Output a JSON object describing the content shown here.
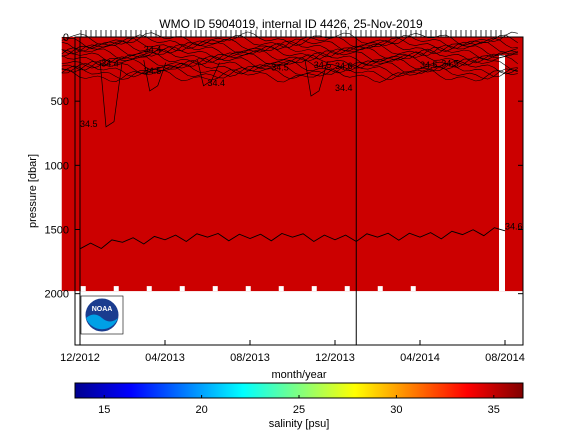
{
  "chart_data": [
    {
      "type": "heatmap",
      "title": "WMO ID 5904019, internal ID 4426, 25-Nov-2019",
      "xlabel": "month/year",
      "ylabel": "pressure [dbar]",
      "x_ticks": [
        "12/2012",
        "04/2013",
        "08/2013",
        "12/2013",
        "04/2014",
        "08/2014"
      ],
      "y_ticks": [
        "0",
        "500",
        "1000",
        "1500",
        "2000"
      ],
      "y_tick_values": [
        0,
        500,
        1000,
        1500,
        2000
      ],
      "ylim": [
        2400,
        0
      ],
      "x_range": [
        "2012-11",
        "2014-09"
      ],
      "fill_color": "#cc0000",
      "profile_bottom_dbar": 1980,
      "gap_columns_month": [
        "2014-08"
      ],
      "contour_labels": [
        {
          "text": "34.4",
          "x": "2013-01",
          "y": 230
        },
        {
          "text": "34.5",
          "x": "2013-03",
          "y": 290
        },
        {
          "text": "34.4",
          "x": "2013-03",
          "y": 120
        },
        {
          "text": "34.5",
          "x": "2012-12",
          "y": 700
        },
        {
          "text": "34.4",
          "x": "2013-06",
          "y": 380
        },
        {
          "text": "34.5",
          "x": "2013-09",
          "y": 260
        },
        {
          "text": "34.5",
          "x": "2013-11",
          "y": 240
        },
        {
          "text": "34.4",
          "x": "2013-12",
          "y": 420
        },
        {
          "text": "34.6",
          "x": "2013-12",
          "y": 250
        },
        {
          "text": "34.5",
          "x": "2014-04",
          "y": 240
        },
        {
          "text": "34.5",
          "x": "2014-05",
          "y": 230
        },
        {
          "text": "34.6",
          "x": "2014-08",
          "y": 1500
        }
      ],
      "contour_1500": {
        "level": "34.6",
        "x": [
          "2012-12",
          "2013-02",
          "2013-04",
          "2013-06",
          "2013-08",
          "2013-10",
          "2013-12",
          "2014-02",
          "2014-04",
          "2014-06",
          "2014-08"
        ],
        "y": [
          1650,
          1600,
          1580,
          1560,
          1570,
          1560,
          1580,
          1560,
          1560,
          1540,
          1510
        ]
      },
      "vertical_markers": [
        "2012-12",
        "2014-01"
      ]
    },
    {
      "type": "heatmap",
      "colorbar": true,
      "xlabel": "salinity [psu]",
      "ticks": [
        "15",
        "20",
        "25",
        "30",
        "35"
      ],
      "tick_values": [
        15,
        20,
        25,
        30,
        35
      ],
      "range": [
        13.5,
        36.5
      ],
      "colormap": [
        "#00008f",
        "#0000ff",
        "#0080ff",
        "#00ffff",
        "#80ff80",
        "#ffff00",
        "#ff8000",
        "#ff0000",
        "#800000"
      ]
    }
  ],
  "logo_text": "NOAA"
}
